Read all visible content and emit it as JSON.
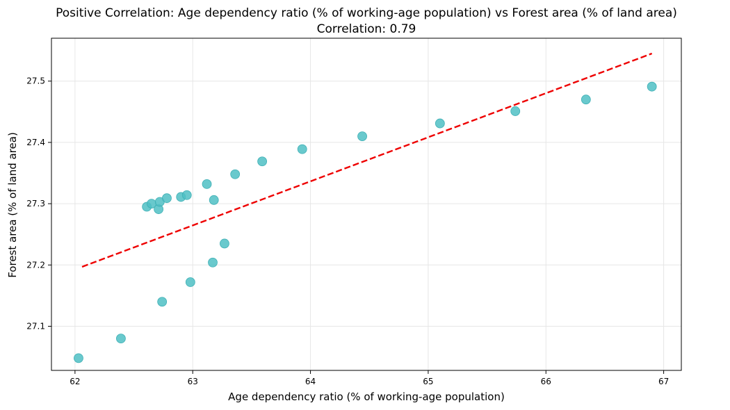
{
  "chart_data": {
    "type": "scatter",
    "title": "Positive Correlation: Age dependency ratio (% of working-age population) vs Forest area (% of land area)",
    "subtitle": "Correlation: 0.79",
    "xlabel": "Age dependency ratio (% of working-age population)",
    "ylabel": "Forest area (% of land area)",
    "xlim": [
      61.8,
      67.15
    ],
    "ylim": [
      27.028,
      27.57
    ],
    "xticks": [
      62,
      63,
      64,
      65,
      66,
      67
    ],
    "yticks": [
      27.1,
      27.2,
      27.3,
      27.4,
      27.5
    ],
    "grid": true,
    "points": [
      {
        "x": 62.03,
        "y": 27.048
      },
      {
        "x": 62.39,
        "y": 27.08
      },
      {
        "x": 62.74,
        "y": 27.14
      },
      {
        "x": 62.98,
        "y": 27.172
      },
      {
        "x": 63.17,
        "y": 27.204
      },
      {
        "x": 63.27,
        "y": 27.235
      },
      {
        "x": 62.61,
        "y": 27.295
      },
      {
        "x": 62.65,
        "y": 27.3
      },
      {
        "x": 62.71,
        "y": 27.291
      },
      {
        "x": 62.72,
        "y": 27.303
      },
      {
        "x": 62.78,
        "y": 27.309
      },
      {
        "x": 62.9,
        "y": 27.311
      },
      {
        "x": 62.95,
        "y": 27.314
      },
      {
        "x": 63.18,
        "y": 27.306
      },
      {
        "x": 63.12,
        "y": 27.332
      },
      {
        "x": 63.36,
        "y": 27.348
      },
      {
        "x": 63.59,
        "y": 27.369
      },
      {
        "x": 63.93,
        "y": 27.389
      },
      {
        "x": 64.44,
        "y": 27.41
      },
      {
        "x": 65.1,
        "y": 27.431
      },
      {
        "x": 65.74,
        "y": 27.451
      },
      {
        "x": 66.34,
        "y": 27.47
      },
      {
        "x": 66.9,
        "y": 27.491
      }
    ],
    "trendline": {
      "x": [
        62.06,
        66.9
      ],
      "y": [
        27.197,
        27.545
      ]
    },
    "colors": {
      "points": "#4fbfc4",
      "trendline": "#ee0000",
      "grid": "#e6e6e6",
      "axes": "#000000"
    }
  }
}
